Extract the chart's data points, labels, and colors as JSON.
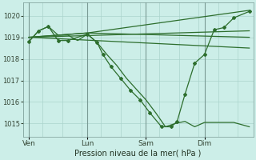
{
  "background_color": "#cceee8",
  "grid_color": "#aad4cc",
  "line_color": "#2d6e2d",
  "xlabel": "Pression niveau de la mer( hPa )",
  "ylim": [
    1014.4,
    1020.6
  ],
  "yticks": [
    1015,
    1016,
    1017,
    1018,
    1019,
    1020
  ],
  "xtick_labels": [
    "Ven",
    "Lun",
    "Sam",
    "Dim"
  ],
  "xtick_positions": [
    0,
    30,
    60,
    90
  ],
  "vline_positions": [
    0,
    30,
    60,
    90
  ],
  "xlim": [
    -3,
    115
  ],
  "series": [
    {
      "x": [
        0,
        113
      ],
      "y": [
        1019.0,
        1018.5
      ],
      "has_markers": false,
      "lw": 0.9
    },
    {
      "x": [
        0,
        113
      ],
      "y": [
        1019.0,
        1019.3
      ],
      "has_markers": false,
      "lw": 0.9
    },
    {
      "x": [
        0,
        30,
        113
      ],
      "y": [
        1019.0,
        1019.2,
        1020.25
      ],
      "has_markers": false,
      "lw": 0.9
    },
    {
      "x": [
        0,
        30,
        113
      ],
      "y": [
        1019.0,
        1019.2,
        1019.0
      ],
      "has_markers": false,
      "lw": 0.9
    },
    {
      "x": [
        0,
        5,
        10,
        15,
        20,
        25,
        30,
        35,
        40,
        45,
        50,
        55,
        60,
        65,
        70,
        75,
        80,
        85,
        90,
        95,
        100,
        105,
        113
      ],
      "y": [
        1018.8,
        1019.3,
        1019.5,
        1019.1,
        1019.1,
        1018.85,
        1019.15,
        1018.75,
        1018.2,
        1017.7,
        1017.1,
        1016.6,
        1016.1,
        1015.5,
        1014.85,
        1015.0,
        1015.1,
        1014.85,
        1015.05,
        1015.05,
        1015.05,
        1015.05,
        1014.85
      ],
      "has_markers": false,
      "lw": 0.9
    },
    {
      "x": [
        0,
        5,
        10,
        15,
        20,
        30,
        35,
        38,
        42,
        47,
        52,
        57,
        62,
        68,
        73,
        76,
        80,
        85,
        90,
        95,
        100,
        105,
        113
      ],
      "y": [
        1018.8,
        1019.3,
        1019.5,
        1018.85,
        1018.85,
        1019.15,
        1018.75,
        1018.2,
        1017.65,
        1017.1,
        1016.55,
        1016.1,
        1015.5,
        1014.85,
        1014.85,
        1015.1,
        1016.35,
        1017.8,
        1018.2,
        1019.35,
        1019.45,
        1019.9,
        1020.2
      ],
      "has_markers": true,
      "lw": 0.9
    }
  ],
  "figsize": [
    3.2,
    2.0
  ],
  "dpi": 100
}
